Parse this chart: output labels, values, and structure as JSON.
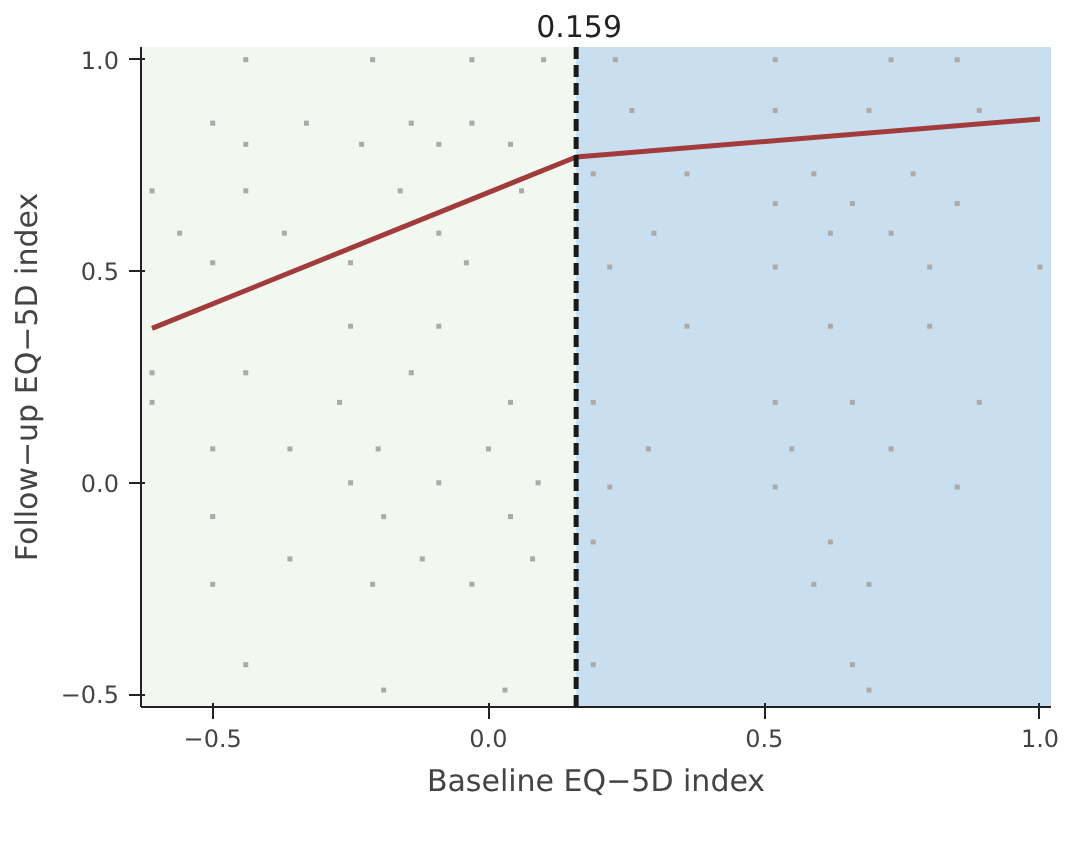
{
  "chart_data": {
    "type": "scatter",
    "xlabel": "Baseline EQ−5D index",
    "ylabel": "Follow−up EQ−5D index",
    "xlim": [
      -0.63,
      1.02
    ],
    "ylim": [
      -0.53,
      1.03
    ],
    "xticks": [
      {
        "value": -0.5,
        "label": "−0.5"
      },
      {
        "value": 0,
        "label": "0.0"
      },
      {
        "value": 0.5,
        "label": "0.5"
      },
      {
        "value": 1,
        "label": "1.0"
      }
    ],
    "yticks": [
      {
        "value": -0.5,
        "label": "−0.5"
      },
      {
        "value": 0,
        "label": "0.0"
      },
      {
        "value": 0.5,
        "label": "0.5"
      },
      {
        "value": 1,
        "label": "1.0"
      }
    ],
    "series": [
      {
        "color": "#aaaaaa",
        "marker": "square",
        "x": [
          -0.44,
          -0.21,
          -0.03,
          0.1,
          -0.5,
          -0.33,
          -0.14,
          -0.03,
          -0.44,
          -0.23,
          -0.09,
          0.04,
          -0.61,
          -0.44,
          -0.16,
          0.06,
          -0.56,
          -0.37,
          -0.09,
          -0.5,
          -0.25,
          -0.04,
          -0.25,
          -0.09,
          -0.61,
          -0.44,
          -0.14,
          -0.61,
          -0.27,
          0.04,
          -0.5,
          -0.36,
          -0.2,
          0.0,
          -0.25,
          -0.09,
          0.09,
          -0.5,
          -0.19,
          0.04,
          -0.36,
          -0.12,
          0.08,
          -0.5,
          -0.21,
          -0.03,
          -0.44,
          -0.19,
          0.03,
          0.23,
          0.52,
          0.73,
          0.85,
          0.26,
          0.52,
          0.69,
          0.89,
          0.19,
          0.36,
          0.59,
          0.77,
          0.52,
          0.66,
          0.85,
          0.3,
          0.62,
          0.73,
          0.22,
          0.52,
          0.8,
          1.0,
          0.36,
          0.62,
          0.8,
          0.19,
          0.52,
          0.66,
          0.89,
          0.29,
          0.55,
          0.73,
          0.22,
          0.52,
          0.85,
          0.19,
          0.62,
          0.59,
          0.69,
          0.19,
          0.66,
          0.69
        ],
        "values": [
          1.0,
          1.0,
          1.0,
          1.0,
          0.85,
          0.85,
          0.85,
          0.85,
          0.8,
          0.8,
          0.8,
          0.8,
          0.69,
          0.69,
          0.69,
          0.69,
          0.59,
          0.59,
          0.59,
          0.52,
          0.52,
          0.52,
          0.37,
          0.37,
          0.26,
          0.26,
          0.26,
          0.19,
          0.19,
          0.19,
          0.08,
          0.08,
          0.08,
          0.08,
          0.0,
          0.0,
          0.0,
          -0.08,
          -0.08,
          -0.08,
          -0.18,
          -0.18,
          -0.18,
          -0.24,
          -0.24,
          -0.24,
          -0.43,
          -0.49,
          -0.49,
          1.0,
          1.0,
          1.0,
          1.0,
          0.88,
          0.88,
          0.88,
          0.88,
          0.73,
          0.73,
          0.73,
          0.73,
          0.66,
          0.66,
          0.66,
          0.59,
          0.59,
          0.59,
          0.51,
          0.51,
          0.51,
          0.51,
          0.37,
          0.37,
          0.37,
          0.19,
          0.19,
          0.19,
          0.19,
          0.08,
          0.08,
          0.08,
          -0.01,
          -0.01,
          -0.01,
          -0.14,
          -0.14,
          -0.24,
          -0.24,
          -0.43,
          -0.43,
          -0.49
        ]
      },
      {
        "type": "line",
        "color": "#a23b3b",
        "x": [
          -0.61,
          0.159,
          1.0
        ],
        "values": [
          0.365,
          0.77,
          0.86
        ]
      }
    ],
    "ref_lines": [
      {
        "axis": "x",
        "value": 0.159,
        "label": "0.159",
        "color": "#1a1a1a",
        "line_style": "dashed"
      }
    ],
    "bands": [
      {
        "axis": "x",
        "from": -0.63,
        "to": 0.159,
        "color": "#f2f7f0"
      },
      {
        "axis": "x",
        "from": 0.159,
        "to": 1.02,
        "color": "#c9dff0"
      }
    ]
  }
}
